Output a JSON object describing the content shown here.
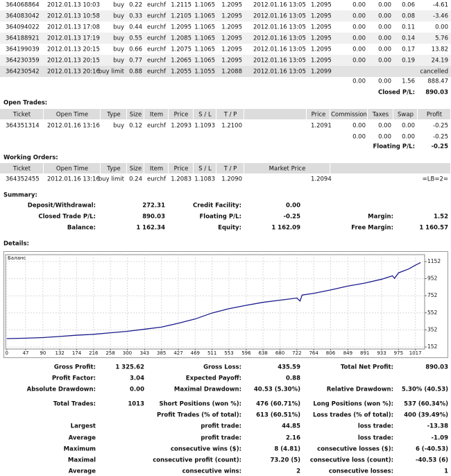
{
  "closed_trades": {
    "rows": [
      [
        "364068864",
        "2012.01.13 10:03",
        "buy",
        "0.22",
        "eurchf",
        "1.2115",
        "1.1065",
        "1.2095",
        "2012.01.16 13:05",
        "1.2095",
        "0.00",
        "0.00",
        "0.06",
        "-4.61"
      ],
      [
        "364083042",
        "2012.01.13 10:58",
        "buy",
        "0.33",
        "eurchf",
        "1.2105",
        "1.1065",
        "1.2095",
        "2012.01.16 13:05",
        "1.2095",
        "0.00",
        "0.00",
        "0.08",
        "-3.46"
      ],
      [
        "364094022",
        "2012.01.13 17:08",
        "buy",
        "0.44",
        "eurchf",
        "1.2095",
        "1.1065",
        "1.2095",
        "2012.01.16 13:05",
        "1.2095",
        "0.00",
        "0.00",
        "0.11",
        "0.00"
      ],
      [
        "364188921",
        "2012.01.13 17:19",
        "buy",
        "0.55",
        "eurchf",
        "1.2085",
        "1.1065",
        "1.2095",
        "2012.01.16 13:05",
        "1.2095",
        "0.00",
        "0.00",
        "0.14",
        "5.76"
      ],
      [
        "364199039",
        "2012.01.13 20:15",
        "buy",
        "0.66",
        "eurchf",
        "1.2075",
        "1.1065",
        "1.2095",
        "2012.01.16 13:05",
        "1.2095",
        "0.00",
        "0.00",
        "0.17",
        "13.82"
      ],
      [
        "364230359",
        "2012.01.13 20:15",
        "buy",
        "0.77",
        "eurchf",
        "1.2065",
        "1.1065",
        "1.2095",
        "2012.01.16 13:05",
        "1.2095",
        "0.00",
        "0.00",
        "0.19",
        "24.19"
      ],
      [
        "364230542",
        "2012.01.13 20:16",
        "buy limit",
        "0.88",
        "eurchf",
        "1.2055",
        "1.1055",
        "1.2088",
        "2012.01.16 13:05",
        "1.2099",
        "cancelled"
      ]
    ],
    "totals": [
      "0.00",
      "0.00",
      "1.56",
      "888.47"
    ],
    "closed_pl": {
      "label": "Closed P/L:",
      "value": "890.03"
    }
  },
  "open_trades": {
    "title": "Open Trades:",
    "header": [
      "Ticket",
      "Open Time",
      "Type",
      "Size",
      "Item",
      "Price",
      "S / L",
      "T / P",
      "Price",
      "Commission",
      "Taxes",
      "Swap",
      "Profit"
    ],
    "rows": [
      [
        "364351314",
        "2012.01.16 13:16",
        "buy",
        "0.12",
        "eurchf",
        "1.2093",
        "1.1093",
        "1.2100",
        "1.2091",
        "0.00",
        "0.00",
        "0.00",
        "-0.25"
      ]
    ],
    "totals": [
      [
        "0.00",
        "0.00",
        "0.00",
        "-0.25"
      ]
    ],
    "floating_pl": {
      "label": "Floating P/L:",
      "value": "-0.25"
    }
  },
  "working_orders": {
    "title": "Working Orders:",
    "header": [
      "Ticket",
      "Open Time",
      "Type",
      "Size",
      "Item",
      "Price",
      "S / L",
      "T / P",
      "Market Price"
    ],
    "rows": [
      [
        "364352455",
        "2012.01.16 13:16",
        "buy limit",
        "0.24",
        "eurchf",
        "1.2083",
        "1.1083",
        "1.2090",
        "1.2094",
        "=LB=2="
      ]
    ]
  },
  "summary": {
    "title": "Summary:",
    "rows": [
      [
        [
          "Deposit/Withdrawal:",
          "272.31"
        ],
        [
          "Credit Facility:",
          "0.00"
        ]
      ],
      [
        [
          "Closed Trade P/L:",
          "890.03"
        ],
        [
          "Floating P/L:",
          "-0.25"
        ],
        [
          "Margin:",
          "1.52"
        ]
      ],
      [
        [
          "Balance:",
          "1 162.34"
        ],
        [
          "Equity:",
          "1 162.09"
        ],
        [
          "Free Margin:",
          "1 160.57"
        ]
      ]
    ]
  },
  "details": {
    "title": "Details:"
  },
  "chart_data": {
    "type": "line",
    "x": [
      0,
      47,
      90,
      132,
      174,
      216,
      258,
      300,
      343,
      385,
      427,
      469,
      511,
      553,
      596,
      638,
      680,
      722,
      730,
      735,
      764,
      806,
      849,
      891,
      933,
      960,
      965,
      975,
      1000,
      1017,
      1030
    ],
    "series": [
      {
        "name": "Баланс",
        "color": "#1a1a8c",
        "values": [
          250,
          255,
          262,
          275,
          290,
          300,
          318,
          335,
          360,
          385,
          430,
          480,
          550,
          600,
          640,
          675,
          700,
          725,
          690,
          760,
          780,
          820,
          865,
          900,
          945,
          985,
          955,
          1020,
          1065,
          1110,
          1140
        ]
      }
    ],
    "xlim": [
      -3,
      1040
    ],
    "ylim": [
      128,
      1233
    ],
    "xticks": [
      0,
      47,
      90,
      132,
      174,
      216,
      258,
      300,
      343,
      385,
      427,
      469,
      511,
      553,
      596,
      638,
      680,
      722,
      764,
      806,
      849,
      891,
      933,
      975,
      1017
    ],
    "yticks": [
      152,
      352,
      552,
      752,
      952,
      1152
    ],
    "grid": true
  },
  "stats": {
    "rows": [
      [
        [
          "Gross Profit:",
          "1 325.62"
        ],
        [
          "Gross Loss:",
          "435.59"
        ],
        [
          "Total Net Profit:",
          "890.03"
        ]
      ],
      [
        [
          "Profit Factor:",
          "3.04"
        ],
        [
          "Expected Payoff:",
          "0.88"
        ]
      ],
      [
        [
          "Absolute Drawdown:",
          "0.00"
        ],
        [
          "Maximal Drawdown:",
          "40.53 (5.30%)"
        ],
        [
          "Relative Drawdown:",
          "5.30% (40.53)"
        ]
      ],
      [
        [
          "Total Trades:",
          "1013"
        ],
        [
          "Short Positions (won %):",
          "476 (60.71%)"
        ],
        [
          "Long Positions (won %):",
          "537 (60.34%)"
        ]
      ],
      [
        null,
        [
          "Profit Trades (% of total):",
          "613 (60.51%)"
        ],
        [
          "Loss trades (% of total):",
          "400 (39.49%)"
        ]
      ],
      [
        [
          "Largest"
        ],
        [
          "profit trade:",
          "44.85"
        ],
        [
          "loss trade:",
          "-13.38"
        ]
      ],
      [
        [
          "Average"
        ],
        [
          "profit trade:",
          "2.16"
        ],
        [
          "loss trade:",
          "-1.09"
        ]
      ],
      [
        [
          "Maximum"
        ],
        [
          "consecutive wins ($):",
          "8 (4.81)"
        ],
        [
          "consecutive losses ($):",
          "6 (-40.53)"
        ]
      ],
      [
        [
          "Maximal"
        ],
        [
          "consecutive profit (count):",
          "73.20 (5)"
        ],
        [
          "consecutive loss (count):",
          "-40.53 (6)"
        ]
      ],
      [
        [
          "Average"
        ],
        [
          "consecutive wins:",
          "2"
        ],
        [
          "consecutive losses:",
          "1"
        ]
      ]
    ]
  }
}
